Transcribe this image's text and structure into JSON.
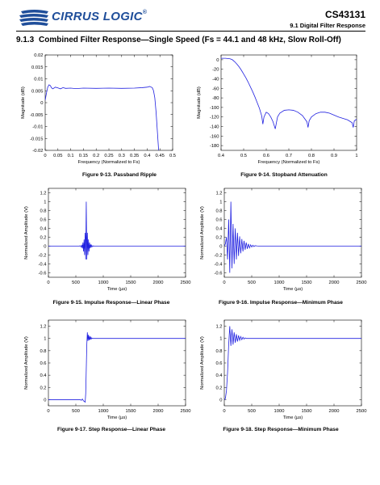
{
  "header": {
    "logo_text": "CIRRUS LOGIC",
    "logo_reg": "®",
    "part": "CS43131",
    "subtitle": "9.1 Digital Filter Response"
  },
  "section": {
    "number": "9.1.3",
    "title": "Combined Filter Response—Single Speed (Fs = 44.1 and 48 kHz, Slow Roll-Off)"
  },
  "colors": {
    "trace": "#2020e0",
    "logo": "#1f4e9a"
  },
  "chart_data": [
    {
      "id": "fig13",
      "type": "line",
      "caption": "Figure 9-13. Passband Ripple",
      "xlabel": "Frequency (Normalized to Fs)",
      "ylabel": "Magnitude (dB)",
      "xlim": [
        0,
        0.5
      ],
      "ylim": [
        -0.02,
        0.02
      ],
      "xticks": [
        0,
        0.05,
        0.1,
        0.15,
        0.2,
        0.25,
        0.3,
        0.35,
        0.4,
        0.45,
        0.5
      ],
      "xtick_labels": [
        "0",
        "0.05",
        "0.1",
        "0.15",
        "0.2",
        "0.25",
        "0.3",
        "0.35",
        "0.4",
        "0.45",
        "0.5"
      ],
      "yticks": [
        -0.02,
        -0.015,
        -0.01,
        -0.005,
        0,
        0.005,
        0.01,
        0.015,
        0.02
      ],
      "ytick_labels": [
        "-0.02",
        "-0.015",
        "-0.01",
        "-0.005",
        "0",
        "0.005",
        "0.01",
        "0.015",
        "0.02"
      ],
      "x": [
        0,
        0.005,
        0.01,
        0.015,
        0.02,
        0.025,
        0.03,
        0.04,
        0.05,
        0.06,
        0.07,
        0.08,
        0.1,
        0.12,
        0.15,
        0.2,
        0.25,
        0.3,
        0.35,
        0.38,
        0.4,
        0.41,
        0.42,
        0.425,
        0.43,
        0.435,
        0.44,
        0.445,
        0.45
      ],
      "y": [
        0.001,
        0.004,
        0.0065,
        0.0075,
        0.0072,
        0.0062,
        0.0058,
        0.0065,
        0.0062,
        0.0058,
        0.0063,
        0.006,
        0.0061,
        0.0059,
        0.0061,
        0.006,
        0.0061,
        0.006,
        0.0061,
        0.0063,
        0.0065,
        0.0068,
        0.0063,
        0.005,
        0.002,
        -0.004,
        -0.012,
        -0.02,
        -0.03
      ]
    },
    {
      "id": "fig14",
      "type": "line",
      "caption": "Figure 9-14. Stopband Attenuation",
      "xlabel": "Frequency (Normalized to Fs)",
      "ylabel": "Magnitude (dB)",
      "xlim": [
        0.4,
        1
      ],
      "ylim": [
        -190,
        10
      ],
      "xticks": [
        0.4,
        0.5,
        0.6,
        0.7,
        0.8,
        0.9,
        1
      ],
      "xtick_labels": [
        "0.4",
        "0.5",
        "0.6",
        "0.7",
        "0.8",
        "0.9",
        "1"
      ],
      "yticks": [
        0,
        -20,
        -40,
        -60,
        -80,
        -100,
        -120,
        -140,
        -160,
        -180
      ],
      "ytick_labels": [
        "0",
        "-20",
        "-40",
        "-60",
        "-80",
        "-100",
        "-120",
        "-140",
        "-160",
        "-180"
      ],
      "x": [
        0.4,
        0.42,
        0.44,
        0.45,
        0.46,
        0.47,
        0.48,
        0.49,
        0.5,
        0.51,
        0.52,
        0.53,
        0.54,
        0.55,
        0.56,
        0.57,
        0.58,
        0.585,
        0.59,
        0.6,
        0.61,
        0.62,
        0.63,
        0.64,
        0.645,
        0.65,
        0.66,
        0.68,
        0.7,
        0.72,
        0.74,
        0.76,
        0.78,
        0.785,
        0.79,
        0.8,
        0.82,
        0.84,
        0.86,
        0.88,
        0.9,
        0.92,
        0.94,
        0.96,
        0.98,
        0.985,
        0.99,
        1
      ],
      "y": [
        3,
        3,
        2,
        0,
        -4,
        -9,
        -15,
        -22,
        -30,
        -38,
        -47,
        -57,
        -67,
        -78,
        -90,
        -102,
        -118,
        -135,
        -120,
        -110,
        -113,
        -120,
        -130,
        -145,
        -132,
        -120,
        -112,
        -106,
        -105,
        -106,
        -110,
        -117,
        -130,
        -142,
        -128,
        -120,
        -113,
        -110,
        -110,
        -112,
        -116,
        -120,
        -123,
        -126,
        -132,
        -142,
        -128,
        -125
      ]
    },
    {
      "id": "fig15",
      "type": "line",
      "caption": "Figure 9-15. Impulse Response—Linear Phase",
      "xlabel": "Time (µs)",
      "ylabel": "Normalized Amplitude (V)",
      "xlim": [
        0,
        2500
      ],
      "ylim": [
        -0.7,
        1.3
      ],
      "xticks": [
        0,
        500,
        1000,
        1500,
        2000,
        2500
      ],
      "xtick_labels": [
        "0",
        "500",
        "1000",
        "1500",
        "2000",
        "2500"
      ],
      "yticks": [
        -0.6,
        -0.4,
        -0.2,
        0,
        0.2,
        0.4,
        0.6,
        0.8,
        1,
        1.2
      ],
      "ytick_labels": [
        "-0.6",
        "-0.4",
        "-0.2",
        "0",
        "0.2",
        "0.4",
        "0.6",
        "0.8",
        "1",
        "1.2"
      ],
      "x": [
        0,
        560,
        580,
        600,
        610,
        620,
        630,
        640,
        650,
        660,
        670,
        680,
        690,
        700,
        710,
        720,
        730,
        740,
        750,
        760,
        770,
        780,
        790,
        800,
        820,
        840,
        2500
      ],
      "y": [
        0,
        0,
        0.01,
        -0.02,
        0.03,
        -0.05,
        0.08,
        -0.12,
        0.15,
        -0.2,
        0.3,
        -0.3,
        1.0,
        -0.3,
        0.3,
        -0.2,
        0.15,
        -0.12,
        0.08,
        -0.05,
        0.04,
        -0.03,
        0.02,
        -0.01,
        0.005,
        0,
        0
      ]
    },
    {
      "id": "fig16",
      "type": "line",
      "caption": "Figure 9-16. Impulse Response—Minimum Phase",
      "xlabel": "Time (µs)",
      "ylabel": "Normalized Amplitude (V)",
      "xlim": [
        0,
        2500
      ],
      "ylim": [
        -0.7,
        1.3
      ],
      "xticks": [
        0,
        500,
        1000,
        1500,
        2000,
        2500
      ],
      "xtick_labels": [
        "0",
        "500",
        "1000",
        "1500",
        "2000",
        "2500"
      ],
      "yticks": [
        -0.6,
        -0.4,
        -0.2,
        0,
        0.2,
        0.4,
        0.6,
        0.8,
        1,
        1.2
      ],
      "ytick_labels": [
        "-0.6",
        "-0.4",
        "-0.2",
        "0",
        "0.2",
        "0.4",
        "0.6",
        "0.8",
        "1",
        "1.2"
      ],
      "x": [
        0,
        20,
        40,
        60,
        80,
        100,
        120,
        140,
        160,
        180,
        200,
        220,
        240,
        260,
        280,
        300,
        320,
        340,
        360,
        380,
        400,
        420,
        440,
        460,
        480,
        500,
        520,
        540,
        560,
        600,
        650,
        700,
        2500
      ],
      "y": [
        0,
        0.05,
        0.2,
        -0.3,
        0.6,
        -0.6,
        1.0,
        -0.5,
        0.5,
        -0.4,
        0.4,
        -0.3,
        0.3,
        -0.22,
        0.22,
        -0.16,
        0.16,
        -0.12,
        0.12,
        -0.08,
        0.08,
        -0.06,
        0.05,
        -0.04,
        0.03,
        -0.02,
        0.02,
        -0.01,
        0.01,
        0.005,
        0,
        0,
        0
      ]
    },
    {
      "id": "fig17",
      "type": "line",
      "caption": "Figure 9-17. Step Response—Linear Phase",
      "xlabel": "Time (µs)",
      "ylabel": "Normalized Amplitude (V)",
      "xlim": [
        0,
        2500
      ],
      "ylim": [
        -0.1,
        1.3
      ],
      "xticks": [
        0,
        500,
        1000,
        1500,
        2000,
        2500
      ],
      "xtick_labels": [
        "0",
        "500",
        "1000",
        "1500",
        "2000",
        "2500"
      ],
      "yticks": [
        0,
        0.2,
        0.4,
        0.6,
        0.8,
        1,
        1.2
      ],
      "ytick_labels": [
        "0",
        "0.2",
        "0.4",
        "0.6",
        "0.8",
        "1",
        "1.2"
      ],
      "x": [
        0,
        580,
        600,
        620,
        640,
        660,
        670,
        680,
        690,
        700,
        710,
        720,
        730,
        740,
        750,
        760,
        770,
        780,
        790,
        800,
        820,
        840,
        880,
        2500
      ],
      "y": [
        0,
        0,
        -0.01,
        0.01,
        -0.02,
        -0.03,
        -0.04,
        0.1,
        0.5,
        0.9,
        1.1,
        0.96,
        1.06,
        0.97,
        1.04,
        0.98,
        1.02,
        0.99,
        1.01,
        1.0,
        1.0,
        1.0,
        1.0,
        1.0
      ]
    },
    {
      "id": "fig18",
      "type": "line",
      "caption": "Figure 9-18. Step Response—Minimum Phase",
      "xlabel": "Time (µs)",
      "ylabel": "Normalized Amplitude (V)",
      "xlim": [
        0,
        2500
      ],
      "ylim": [
        -0.1,
        1.3
      ],
      "xticks": [
        0,
        500,
        1000,
        1500,
        2000,
        2500
      ],
      "xtick_labels": [
        "0",
        "500",
        "1000",
        "1500",
        "2000",
        "2500"
      ],
      "yticks": [
        0,
        0.2,
        0.4,
        0.6,
        0.8,
        1,
        1.2
      ],
      "ytick_labels": [
        "0",
        "0.2",
        "0.4",
        "0.6",
        "0.8",
        "1",
        "1.2"
      ],
      "x": [
        0,
        20,
        40,
        60,
        80,
        100,
        120,
        140,
        160,
        180,
        200,
        220,
        240,
        260,
        280,
        300,
        320,
        340,
        360,
        380,
        400,
        450,
        500,
        2500
      ],
      "y": [
        0,
        0.02,
        0.15,
        0.45,
        0.9,
        1.2,
        0.88,
        1.15,
        0.9,
        1.1,
        0.93,
        1.07,
        0.95,
        1.05,
        0.97,
        1.03,
        0.98,
        1.02,
        0.99,
        1.01,
        1.0,
        1.0,
        1.0,
        1.0
      ]
    }
  ]
}
